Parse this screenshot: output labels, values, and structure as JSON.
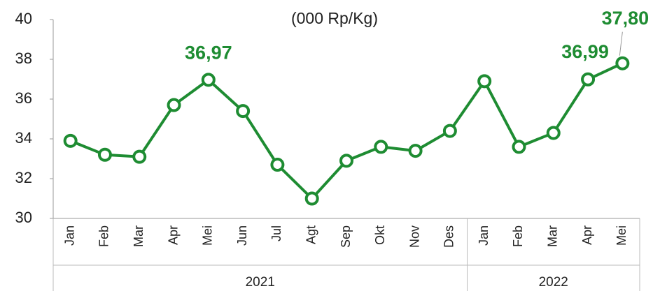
{
  "chart_data": {
    "type": "line",
    "subtitle": "(000 Rp/Kg)",
    "groups": [
      {
        "label": "2021",
        "categories": [
          "Jan",
          "Feb",
          "Mar",
          "Apr",
          "Mei",
          "Jun",
          "Jul",
          "Agt",
          "Sep",
          "Okt",
          "Nov",
          "Des"
        ]
      },
      {
        "label": "2022",
        "categories": [
          "Jan",
          "Feb",
          "Mar",
          "Apr",
          "Mei"
        ]
      }
    ],
    "series": [
      {
        "color": "#1e8c32",
        "values": [
          33.9,
          33.2,
          33.1,
          35.7,
          36.97,
          35.4,
          32.7,
          31.0,
          32.9,
          33.6,
          33.4,
          34.4,
          36.9,
          33.6,
          34.3,
          36.99,
          37.8
        ],
        "value_labels": [
          null,
          null,
          null,
          null,
          "36,97",
          null,
          null,
          null,
          null,
          null,
          null,
          null,
          null,
          null,
          null,
          "36,99",
          "37,80"
        ]
      }
    ],
    "ylim": [
      30,
      40
    ],
    "yticks": [
      30,
      32,
      34,
      36,
      38,
      40
    ]
  }
}
